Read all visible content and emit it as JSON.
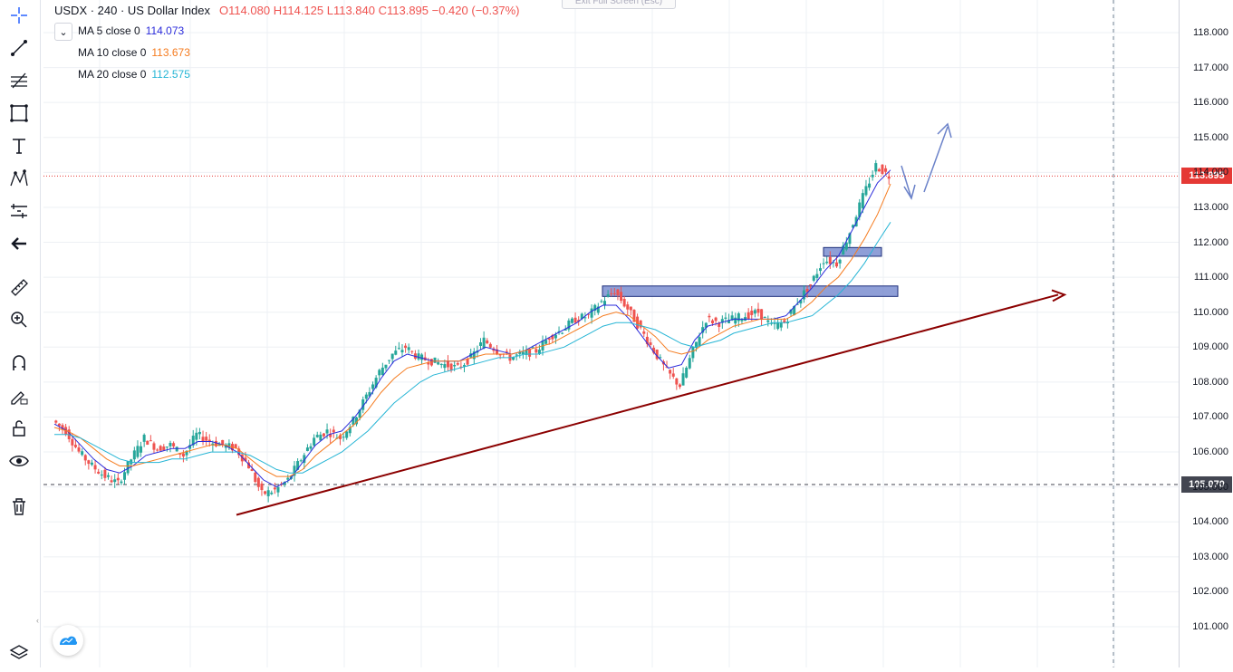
{
  "header": {
    "symbol_line": "USDX · 240 · US Dollar Index",
    "ohlc": "O114.080 H114.125 L113.840 C113.895 −0.420 (−0.37%)",
    "exit_fullscreen": "Exit Full Screen (Esc)",
    "collapse_glyph": "⌄"
  },
  "indicators": [
    {
      "label": "MA 5 close 0",
      "value": "114.073",
      "color": "#2b2bdb"
    },
    {
      "label": "MA 10 close 0",
      "value": "113.673",
      "color": "#f57c20"
    },
    {
      "label": "MA 20 close 0",
      "value": "112.575",
      "color": "#26b5d5"
    }
  ],
  "toolbar": [
    "crosshair-icon",
    "trend-line-icon",
    "fib-icon",
    "rectangle-icon",
    "text-icon",
    "pattern-icon",
    "forecast-icon",
    "back-arrow-icon",
    "ruler-icon",
    "zoom-icon",
    "magnet-icon",
    "lock-drawing-icon",
    "unlock-icon",
    "eye-icon",
    "trash-icon",
    "layers-icon"
  ],
  "chart_data": {
    "type": "candlestick",
    "symbol": "USDX",
    "interval": "240",
    "ylim": [
      100.0,
      119.0
    ],
    "y_ticks": [
      "101.000",
      "102.000",
      "103.000",
      "104.000",
      "105.000",
      "106.000",
      "107.000",
      "108.000",
      "109.000",
      "110.000",
      "111.000",
      "112.000",
      "113.000",
      "114.000",
      "115.000",
      "116.000",
      "117.000",
      "118.000"
    ],
    "last_price": "113.895",
    "crosshair_price": "105.070",
    "last_price_value": 113.895,
    "crosshair_value": 105.07,
    "series": [
      {
        "name": "price",
        "values": [
          106.9,
          106.6,
          106.0,
          105.6,
          105.3,
          105.1,
          105.8,
          106.4,
          106.1,
          106.2,
          105.9,
          106.5,
          106.3,
          106.2,
          106.1,
          105.6,
          104.8,
          104.9,
          105.2,
          105.8,
          106.4,
          106.6,
          106.4,
          106.9,
          107.6,
          108.3,
          108.8,
          109.0,
          108.7,
          108.6,
          108.5,
          108.4,
          108.7,
          109.2,
          108.9,
          108.7,
          108.8,
          108.9,
          109.3,
          109.5,
          109.8,
          109.9,
          110.3,
          110.6,
          110.1,
          109.5,
          108.9,
          108.3,
          107.9,
          108.9,
          109.8,
          109.7,
          109.8,
          109.9,
          110.0,
          109.6,
          109.7,
          110.3,
          110.8,
          111.5,
          111.4,
          112.3,
          113.3,
          114.2,
          113.9
        ]
      },
      {
        "name": "MA 5",
        "values": [
          106.8,
          106.6,
          106.2,
          105.8,
          105.5,
          105.4,
          105.6,
          105.9,
          106.0,
          106.1,
          106.1,
          106.3,
          106.3,
          106.2,
          106.0,
          105.6,
          105.2,
          105.0,
          105.2,
          105.7,
          106.2,
          106.5,
          106.6,
          107.0,
          107.5,
          108.1,
          108.6,
          108.8,
          108.7,
          108.6,
          108.6,
          108.6,
          108.8,
          109.0,
          108.9,
          108.8,
          108.9,
          109.1,
          109.3,
          109.5,
          109.7,
          110.0,
          110.2,
          110.2,
          109.8,
          109.3,
          108.8,
          108.4,
          108.5,
          109.2,
          109.6,
          109.7,
          109.8,
          109.8,
          109.8,
          109.8,
          109.9,
          110.3,
          110.7,
          111.2,
          111.6,
          112.3,
          113.0,
          113.7,
          114.07
        ]
      },
      {
        "name": "MA 10",
        "values": [
          106.7,
          106.6,
          106.4,
          106.1,
          105.8,
          105.6,
          105.6,
          105.7,
          105.8,
          105.9,
          106.0,
          106.1,
          106.2,
          106.2,
          106.1,
          105.8,
          105.5,
          105.3,
          105.3,
          105.5,
          105.9,
          106.2,
          106.5,
          106.8,
          107.2,
          107.7,
          108.1,
          108.4,
          108.5,
          108.6,
          108.6,
          108.6,
          108.7,
          108.8,
          108.8,
          108.8,
          108.9,
          109.0,
          109.1,
          109.3,
          109.5,
          109.7,
          109.9,
          110.0,
          109.9,
          109.6,
          109.3,
          108.9,
          108.8,
          108.9,
          109.2,
          109.4,
          109.6,
          109.7,
          109.8,
          109.8,
          109.8,
          110.0,
          110.3,
          110.7,
          111.0,
          111.5,
          112.1,
          112.8,
          113.67
        ]
      },
      {
        "name": "MA 20",
        "values": [
          106.5,
          106.5,
          106.4,
          106.2,
          106.0,
          105.8,
          105.7,
          105.7,
          105.7,
          105.8,
          105.8,
          105.9,
          106.0,
          106.0,
          106.0,
          105.9,
          105.7,
          105.5,
          105.4,
          105.4,
          105.6,
          105.8,
          106.0,
          106.3,
          106.6,
          107.0,
          107.4,
          107.7,
          108.0,
          108.2,
          108.3,
          108.4,
          108.5,
          108.6,
          108.7,
          108.7,
          108.8,
          108.8,
          108.9,
          109.0,
          109.2,
          109.4,
          109.6,
          109.7,
          109.7,
          109.6,
          109.5,
          109.3,
          109.1,
          109.0,
          109.1,
          109.2,
          109.4,
          109.5,
          109.6,
          109.7,
          109.7,
          109.8,
          109.9,
          110.2,
          110.5,
          110.9,
          111.4,
          112.0,
          112.575
        ]
      }
    ],
    "annotations": {
      "trendline": {
        "from": [
          "start",
          104.2
        ],
        "to": [
          "end",
          110.5
        ]
      },
      "zones": [
        {
          "low": 110.45,
          "high": 110.75
        },
        {
          "low": 111.6,
          "high": 111.85
        }
      ]
    },
    "colors": {
      "up": "#26a69a",
      "down": "#ef5350",
      "trend": "#8b0000",
      "zone": "#7b8ed0",
      "arrows": "#6b82c9",
      "last_price": "#e53935",
      "crosshair": "#434651"
    }
  }
}
